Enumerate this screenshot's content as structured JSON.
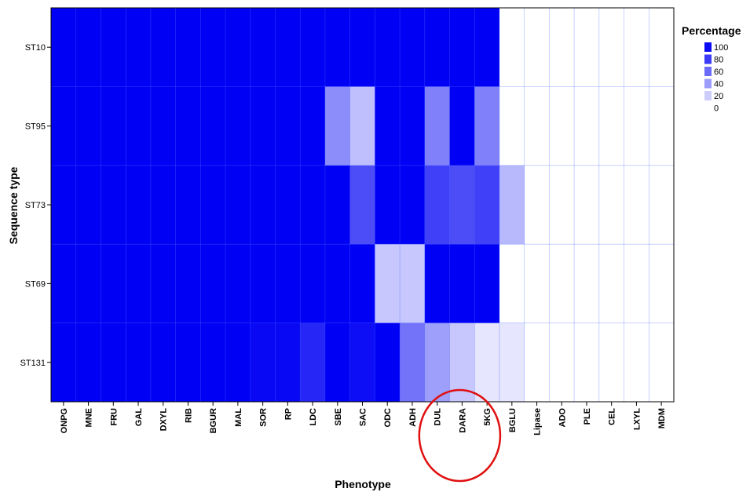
{
  "chart_data": {
    "type": "heatmap",
    "xlabel": "Phenotype",
    "ylabel": "Sequence type",
    "x_categories": [
      "ONPG",
      "MNE",
      "FRU",
      "GAL",
      "DXYL",
      "RIB",
      "BGUR",
      "MAL",
      "SOR",
      "RP",
      "LDC",
      "SBE",
      "SAC",
      "ODC",
      "ADH",
      "DUL",
      "DARA",
      "5KG",
      "BGLU",
      "Lipase",
      "ADO",
      "PLE",
      "CEL",
      "LXYL",
      "MDM"
    ],
    "y_categories": [
      "ST10",
      "ST95",
      "ST73",
      "ST69",
      "ST131"
    ],
    "values": [
      [
        100,
        100,
        100,
        100,
        100,
        100,
        100,
        100,
        100,
        100,
        100,
        100,
        100,
        100,
        100,
        100,
        100,
        100,
        0,
        0,
        0,
        0,
        0,
        0,
        0
      ],
      [
        100,
        100,
        100,
        100,
        100,
        100,
        100,
        100,
        100,
        100,
        100,
        45,
        25,
        100,
        100,
        50,
        100,
        50,
        0,
        0,
        0,
        0,
        0,
        0,
        0
      ],
      [
        100,
        100,
        100,
        100,
        100,
        100,
        100,
        100,
        100,
        100,
        100,
        100,
        70,
        100,
        100,
        75,
        70,
        75,
        28,
        0,
        0,
        0,
        0,
        0,
        0
      ],
      [
        100,
        100,
        100,
        100,
        100,
        100,
        100,
        100,
        100,
        100,
        100,
        100,
        100,
        22,
        22,
        100,
        100,
        100,
        0,
        0,
        0,
        0,
        0,
        0,
        0
      ],
      [
        100,
        100,
        100,
        100,
        100,
        100,
        100,
        100,
        97,
        97,
        85,
        100,
        95,
        100,
        55,
        38,
        22,
        10,
        10,
        0,
        0,
        0,
        0,
        0,
        0
      ]
    ],
    "highlight": {
      "shape": "ellipse",
      "color": "#e01010",
      "categories": [
        "DUL",
        "DARA",
        "5KG"
      ]
    }
  },
  "legend": {
    "title": "Percentage",
    "entries": [
      {
        "label": "100",
        "color": "#0a0af5"
      },
      {
        "label": "80",
        "color": "#3a3af7"
      },
      {
        "label": "60",
        "color": "#6b6bf9"
      },
      {
        "label": "40",
        "color": "#9c9cfb"
      },
      {
        "label": "20",
        "color": "#cdcdfd"
      },
      {
        "label": "0",
        "color": "#ffffff"
      }
    ]
  },
  "colors": {
    "cell_max": "#0000f5",
    "cell_min": "#ffffff",
    "gridline": "#4f6fff"
  }
}
